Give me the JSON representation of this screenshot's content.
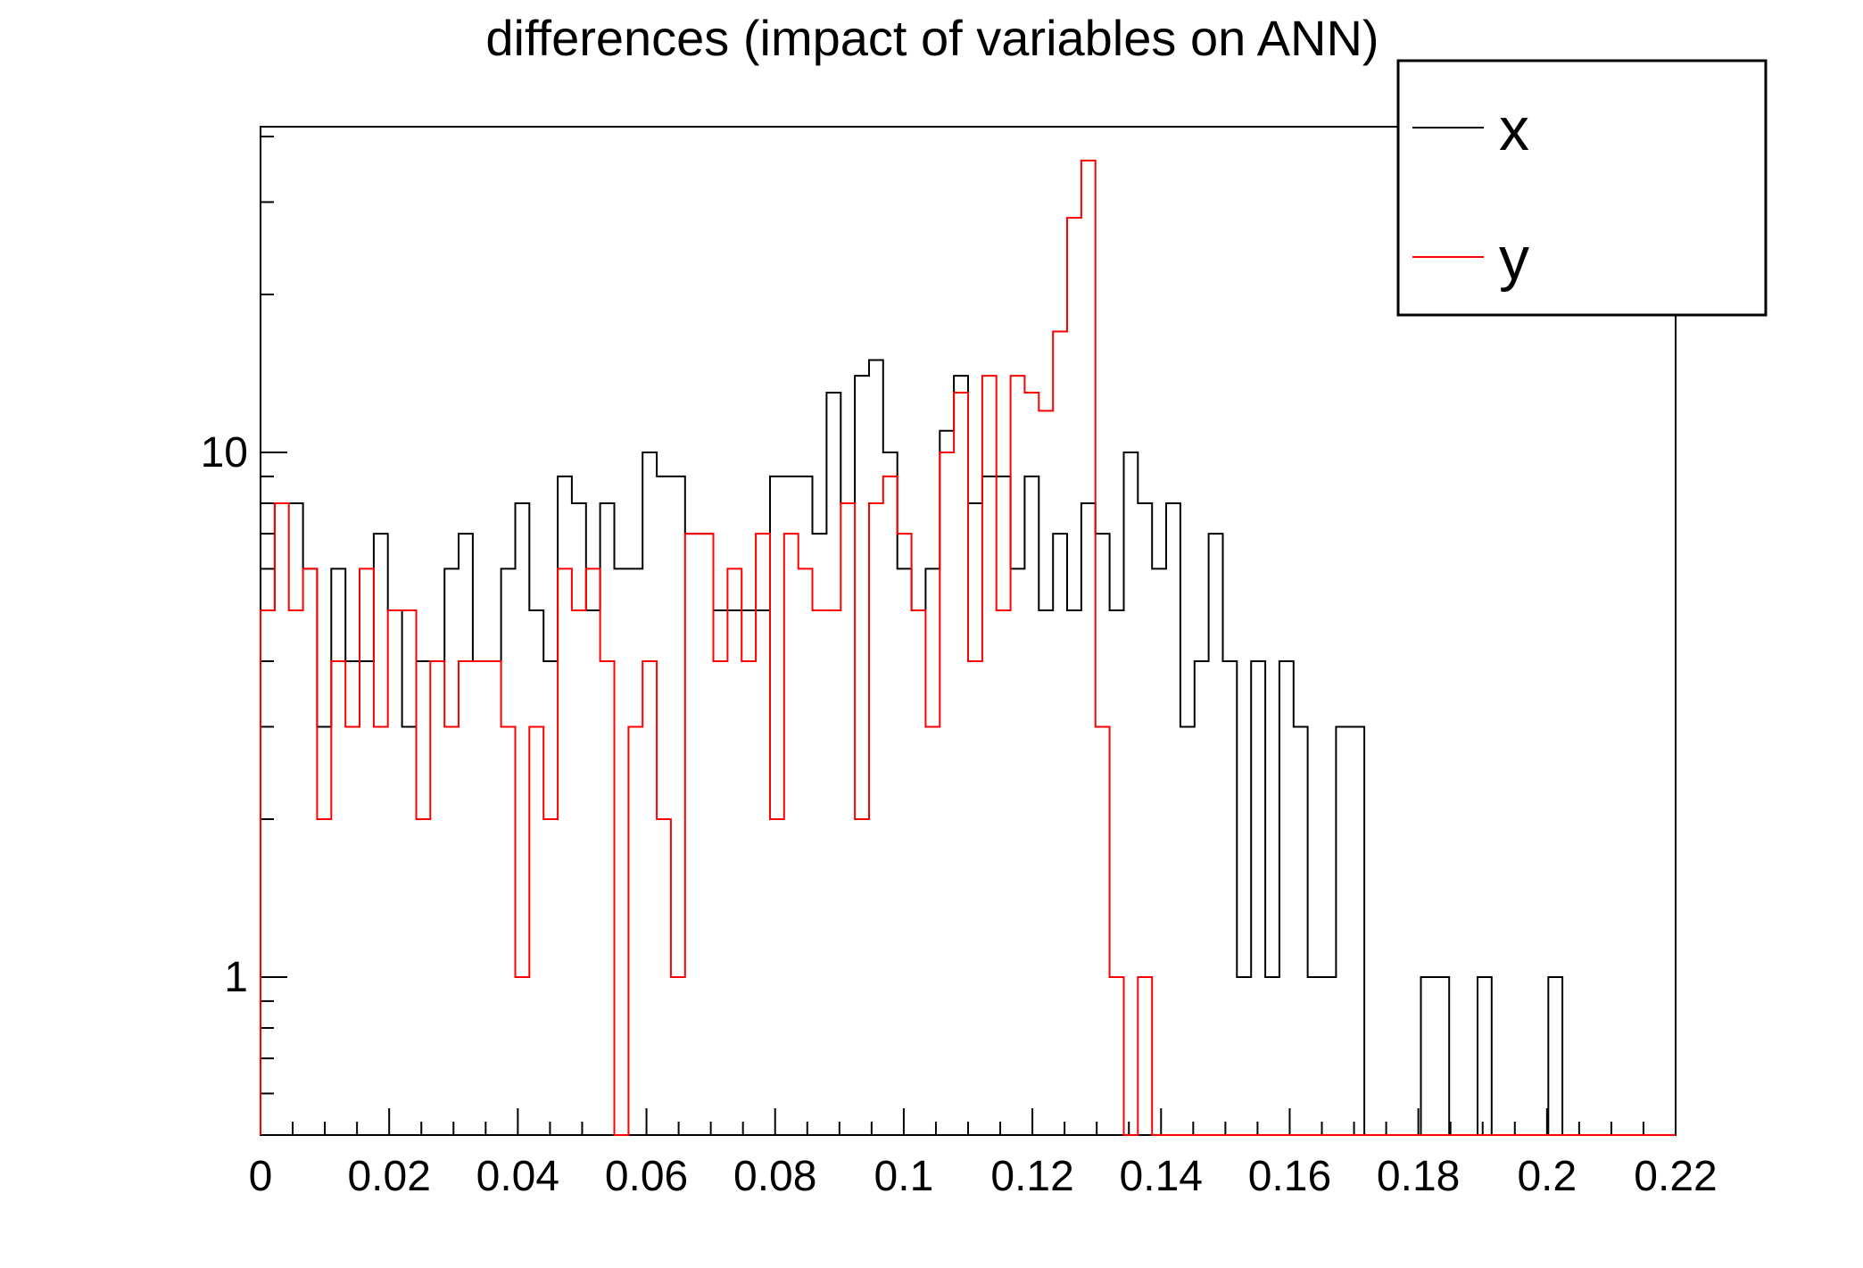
{
  "title": "differences (impact of variables on ANN)",
  "colors": {
    "series_x": "#000000",
    "series_y": "#ff0000",
    "frame": "#000000",
    "background": "#ffffff"
  },
  "legend": {
    "entries": [
      {
        "label": "x",
        "color": "#000000"
      },
      {
        "label": "y",
        "color": "#ff0000"
      }
    ]
  },
  "chart_data": {
    "type": "bar",
    "subtype": "step-histogram-outline",
    "title": "differences (impact of variables on ANN)",
    "xlabel": "",
    "ylabel": "",
    "x_min": 0,
    "x_max": 0.22,
    "n_bins": 100,
    "bin_width": 0.0022,
    "y_scale": "log",
    "y_min": 0.5,
    "y_max": 41.7,
    "x_tick_major_step": 0.02,
    "x_tick_minor_step": 0.005,
    "x_tick_labels": [
      "0",
      "0.02",
      "0.04",
      "0.06",
      "0.08",
      "0.1",
      "0.12",
      "0.14",
      "0.16",
      "0.18",
      "0.2",
      "0.22"
    ],
    "y_tick_labels": [
      {
        "value": 1,
        "label": "1"
      },
      {
        "value": 10,
        "label": "10"
      }
    ],
    "grid": false,
    "legend_position": "top-right",
    "series": [
      {
        "name": "x",
        "color": "#000000",
        "values": [
          5,
          8,
          8,
          6,
          3,
          6,
          4,
          4,
          7,
          5,
          3,
          4,
          4,
          6,
          7,
          4,
          4,
          6,
          8,
          5,
          4,
          9,
          8,
          5,
          8,
          6,
          6,
          10,
          9,
          9,
          7,
          7,
          5,
          5,
          5,
          5,
          9,
          9,
          9,
          7,
          13,
          8,
          14,
          15,
          10,
          6,
          5,
          6,
          11,
          14,
          8,
          9,
          9,
          6,
          9,
          5,
          7,
          5,
          8,
          7,
          5,
          10,
          8,
          6,
          8,
          3,
          4,
          7,
          4,
          1,
          4,
          1,
          4,
          3,
          1,
          1,
          3,
          3,
          0,
          0,
          0,
          0,
          1,
          1,
          0,
          0,
          1,
          0,
          0,
          0,
          0,
          1,
          0,
          0,
          0,
          0,
          0,
          0,
          0,
          0
        ]
      },
      {
        "name": "y",
        "color": "#ff0000",
        "values": [
          5,
          8,
          5,
          6,
          2,
          4,
          3,
          6,
          3,
          5,
          5,
          2,
          4,
          3,
          4,
          4,
          4,
          3,
          1,
          3,
          2,
          6,
          5,
          6,
          4,
          0,
          3,
          4,
          2,
          1,
          7,
          7,
          4,
          6,
          4,
          7,
          2,
          7,
          6,
          5,
          5,
          8,
          2,
          8,
          9,
          7,
          5,
          3,
          10,
          13,
          4,
          14,
          5,
          14,
          13,
          12,
          17,
          28,
          36,
          3,
          1,
          0,
          1,
          0,
          0,
          0,
          0,
          0,
          0,
          0,
          0,
          0,
          0,
          0,
          0,
          0,
          0,
          0,
          0,
          0,
          0,
          0,
          0,
          0,
          0,
          0,
          0,
          0,
          0,
          0,
          0,
          0,
          0,
          0,
          0,
          0,
          0,
          0,
          0,
          0
        ]
      }
    ]
  }
}
